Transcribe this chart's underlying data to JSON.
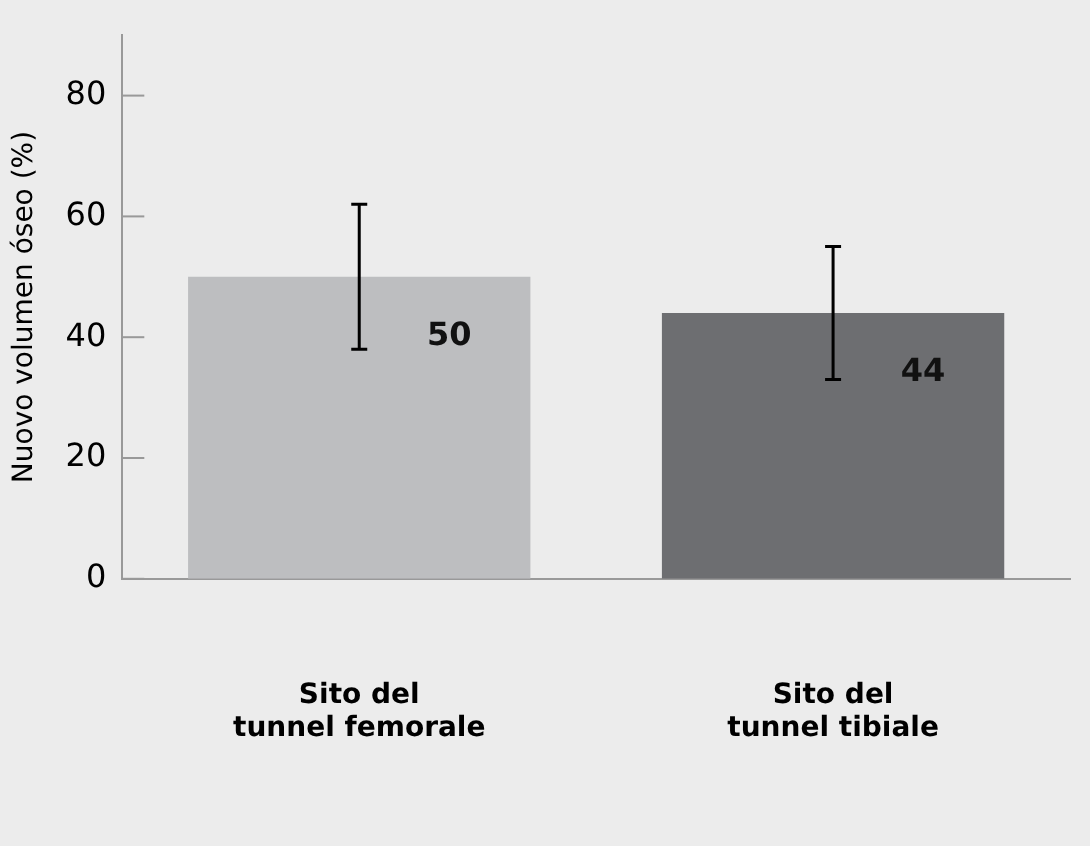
{
  "chart_data": {
    "type": "bar",
    "ylabel": "Nuovo volumen óseo (%)",
    "categories": [
      "Sito del\ntunnel femorale",
      "Sito del\ntunnel tibiale"
    ],
    "values": [
      50,
      44
    ],
    "colors": [
      "#bdbec0",
      "#6d6e71"
    ],
    "errors": [
      12,
      11
    ],
    "data_labels": true,
    "ylim": [
      0,
      90
    ],
    "yticks": [
      0,
      20,
      40,
      60,
      80
    ],
    "grid": false,
    "legend": false
  }
}
